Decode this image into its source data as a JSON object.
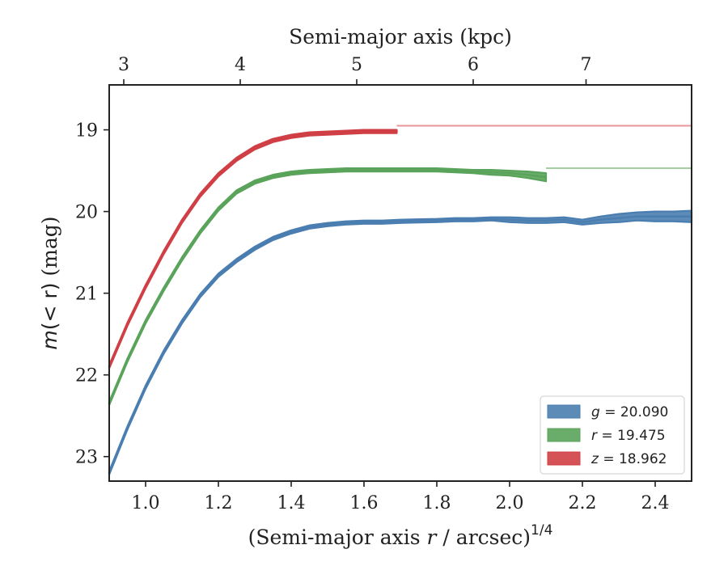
{
  "chart_data": {
    "type": "line",
    "xlabel_prefix": "(Semi-major axis ",
    "xlabel_var": "r",
    "xlabel_suffix": " / arcsec)",
    "xlabel_sup": "1/4",
    "ylabel_var": "m",
    "ylabel_expr": "(< r)",
    "ylabel_unit": " (mag)",
    "top_xlabel": "Semi-major axis (kpc)",
    "xlim": [
      0.9,
      2.5
    ],
    "ylim": [
      23.3,
      18.45
    ],
    "y_inverted": true,
    "x_ticks": [
      1.0,
      1.2,
      1.4,
      1.6,
      1.8,
      2.0,
      2.2,
      2.4
    ],
    "x_tick_labels": [
      "1.0",
      "1.2",
      "1.4",
      "1.6",
      "1.8",
      "2.0",
      "2.2",
      "2.4"
    ],
    "y_ticks": [
      19,
      20,
      21,
      22,
      23
    ],
    "y_tick_labels": [
      "19",
      "20",
      "21",
      "22",
      "23"
    ],
    "top_ticks_kpc": [
      3,
      4,
      5,
      6,
      7
    ],
    "top_tick_labels": [
      "3",
      "4",
      "5",
      "6",
      "7"
    ],
    "top_tick_positions_x": [
      0.94,
      1.26,
      1.58,
      1.9,
      2.21
    ],
    "legend_position": "lower right",
    "series": [
      {
        "band": "g",
        "name": "g = 20.090",
        "legend_band": "g",
        "legend_value": " = 20.090",
        "color": "#4a7eb0",
        "fit_color": "#9cbad6",
        "fit_value": 20.14,
        "x": [
          0.9,
          0.95,
          1.0,
          1.05,
          1.1,
          1.15,
          1.2,
          1.25,
          1.3,
          1.35,
          1.4,
          1.45,
          1.5,
          1.55,
          1.6,
          1.65,
          1.7,
          1.8,
          1.85,
          1.9,
          1.95,
          2.0,
          2.05,
          2.1,
          2.15,
          2.2,
          2.25,
          2.3,
          2.35,
          2.4,
          2.45,
          2.5
        ],
        "y": [
          23.2,
          22.65,
          22.15,
          21.72,
          21.35,
          21.03,
          20.78,
          20.6,
          20.45,
          20.33,
          20.25,
          20.19,
          20.16,
          20.14,
          20.13,
          20.13,
          20.12,
          20.11,
          20.1,
          20.1,
          20.09,
          20.1,
          20.11,
          20.11,
          20.1,
          20.13,
          20.1,
          20.08,
          20.06,
          20.06,
          20.06,
          20.06
        ],
        "half_width": [
          0.02,
          0.02,
          0.02,
          0.02,
          0.02,
          0.02,
          0.02,
          0.02,
          0.02,
          0.02,
          0.02,
          0.02,
          0.02,
          0.02,
          0.02,
          0.02,
          0.02,
          0.02,
          0.02,
          0.02,
          0.02,
          0.03,
          0.03,
          0.03,
          0.03,
          0.03,
          0.04,
          0.05,
          0.05,
          0.06,
          0.06,
          0.07
        ]
      },
      {
        "band": "r",
        "name": "r = 19.475",
        "legend_band": "r",
        "legend_value": " = 19.475",
        "color": "#5aa35a",
        "fit_color": "#a3cfa3",
        "fit_value": 19.47,
        "x": [
          0.9,
          0.95,
          1.0,
          1.05,
          1.1,
          1.15,
          1.2,
          1.25,
          1.3,
          1.35,
          1.4,
          1.45,
          1.5,
          1.55,
          1.6,
          1.7,
          1.8,
          1.85,
          1.9,
          1.95,
          2.0,
          2.05,
          2.1
        ],
        "y": [
          22.35,
          21.82,
          21.35,
          20.95,
          20.58,
          20.25,
          19.97,
          19.76,
          19.64,
          19.57,
          19.53,
          19.51,
          19.5,
          19.49,
          19.49,
          19.49,
          19.49,
          19.5,
          19.51,
          19.52,
          19.53,
          19.55,
          19.58
        ],
        "half_width": [
          0.02,
          0.02,
          0.02,
          0.02,
          0.02,
          0.02,
          0.02,
          0.02,
          0.02,
          0.02,
          0.02,
          0.02,
          0.02,
          0.02,
          0.02,
          0.02,
          0.02,
          0.02,
          0.02,
          0.03,
          0.03,
          0.04,
          0.05
        ]
      },
      {
        "band": "z",
        "name": "z = 18.962",
        "legend_band": "z",
        "legend_value": " = 18.962",
        "color": "#d03f45",
        "fit_color": "#e8969a",
        "fit_value": 18.95,
        "x": [
          0.9,
          0.95,
          1.0,
          1.05,
          1.1,
          1.15,
          1.2,
          1.25,
          1.3,
          1.35,
          1.4,
          1.45,
          1.5,
          1.55,
          1.6,
          1.65,
          1.69
        ],
        "y": [
          21.9,
          21.38,
          20.92,
          20.5,
          20.12,
          19.8,
          19.55,
          19.36,
          19.22,
          19.13,
          19.08,
          19.05,
          19.04,
          19.03,
          19.02,
          19.02,
          19.02
        ],
        "half_width": [
          0.02,
          0.02,
          0.02,
          0.02,
          0.02,
          0.02,
          0.02,
          0.02,
          0.02,
          0.02,
          0.02,
          0.02,
          0.02,
          0.02,
          0.02,
          0.02,
          0.02
        ]
      }
    ]
  }
}
